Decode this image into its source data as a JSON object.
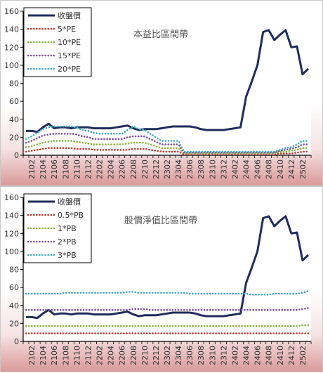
{
  "chart_data": [
    {
      "type": "line",
      "title": "本益比區間帶",
      "ylim": [
        0,
        160
      ],
      "yticks": [
        0,
        20,
        40,
        60,
        80,
        100,
        120,
        140,
        160
      ],
      "x_tick_labels": [
        "2102",
        "2104",
        "2106",
        "2108",
        "2110",
        "2112",
        "2202",
        "2204",
        "2206",
        "2208",
        "2210",
        "2212",
        "2302",
        "2304",
        "2306",
        "2308",
        "2310",
        "2312",
        "2402",
        "2404",
        "2406",
        "2408",
        "2410",
        "2412",
        "2502"
      ],
      "x": [
        "2101",
        "2102",
        "2103",
        "2104",
        "2105",
        "2106",
        "2107",
        "2108",
        "2109",
        "2110",
        "2111",
        "2112",
        "2201",
        "2202",
        "2203",
        "2204",
        "2205",
        "2206",
        "2207",
        "2208",
        "2209",
        "2210",
        "2211",
        "2212",
        "2301",
        "2302",
        "2303",
        "2304",
        "2305",
        "2306",
        "2307",
        "2308",
        "2309",
        "2310",
        "2311",
        "2312",
        "2401",
        "2402",
        "2403",
        "2404",
        "2405",
        "2406",
        "2407",
        "2408",
        "2409",
        "2410",
        "2411",
        "2412",
        "2501",
        "2502",
        "2503"
      ],
      "legend_position": "top-left",
      "series": [
        {
          "name": "收盤價",
          "color": "#1f2d5a",
          "style": "solid",
          "values": [
            27,
            27,
            26,
            31,
            35,
            30,
            31,
            31,
            30,
            31,
            31,
            31,
            30,
            30,
            30,
            30,
            31,
            32,
            33,
            30,
            28,
            29,
            29,
            29,
            30,
            31,
            32,
            32,
            32,
            32,
            31,
            29,
            28,
            28,
            28,
            28,
            29,
            30,
            31,
            65,
            82,
            100,
            137,
            139,
            128,
            134,
            139,
            120,
            121,
            90,
            96
          ]
        },
        {
          "name": "5*PE",
          "color": "#c0392b",
          "style": "dotted",
          "values": [
            4,
            5,
            6,
            7,
            8,
            8,
            8,
            8,
            8,
            7,
            7,
            7,
            6,
            6,
            6,
            6,
            6,
            6,
            6,
            7,
            7,
            7,
            6,
            5,
            4,
            4,
            4,
            4,
            1,
            1,
            1,
            1,
            1,
            1,
            1,
            1,
            1,
            1,
            1,
            1,
            1,
            1,
            1,
            1,
            1,
            2,
            2,
            2,
            3,
            4,
            4
          ]
        },
        {
          "name": "10*PE",
          "color": "#8cb43c",
          "style": "dotted",
          "values": [
            9,
            10,
            12,
            14,
            15,
            16,
            16,
            16,
            16,
            15,
            14,
            13,
            12,
            12,
            12,
            12,
            12,
            12,
            13,
            14,
            14,
            14,
            12,
            10,
            8,
            8,
            8,
            8,
            2,
            2,
            2,
            2,
            2,
            2,
            2,
            2,
            2,
            2,
            2,
            2,
            2,
            2,
            2,
            2,
            2,
            4,
            4,
            5,
            6,
            8,
            8
          ]
        },
        {
          "name": "15*PE",
          "color": "#7a52a0",
          "style": "dotted",
          "values": [
            14,
            16,
            19,
            22,
            23,
            24,
            24,
            24,
            24,
            23,
            21,
            20,
            18,
            18,
            18,
            18,
            18,
            18,
            20,
            21,
            21,
            21,
            18,
            15,
            12,
            12,
            12,
            12,
            3,
            3,
            3,
            3,
            3,
            3,
            3,
            3,
            3,
            3,
            3,
            3,
            3,
            3,
            3,
            3,
            3,
            5,
            6,
            7,
            9,
            12,
            12
          ]
        },
        {
          "name": "20*PE",
          "color": "#43a9c8",
          "style": "dotted",
          "values": [
            18,
            21,
            25,
            29,
            31,
            32,
            32,
            32,
            32,
            31,
            28,
            27,
            25,
            24,
            24,
            24,
            24,
            24,
            28,
            32,
            29,
            28,
            24,
            20,
            16,
            16,
            16,
            16,
            4,
            4,
            4,
            4,
            4,
            4,
            4,
            4,
            4,
            4,
            4,
            4,
            4,
            4,
            4,
            4,
            4,
            6,
            8,
            9,
            12,
            16,
            16
          ]
        }
      ]
    },
    {
      "type": "line",
      "title": "股價淨值比區間帶",
      "ylim": [
        0,
        160
      ],
      "yticks": [
        0,
        20,
        40,
        60,
        80,
        100,
        120,
        140,
        160
      ],
      "x_tick_labels": [
        "2102",
        "2104",
        "2106",
        "2108",
        "2110",
        "2112",
        "2202",
        "2204",
        "2206",
        "2208",
        "2210",
        "2212",
        "2302",
        "2304",
        "2306",
        "2308",
        "2310",
        "2312",
        "2402",
        "2404",
        "2406",
        "2408",
        "2410",
        "2412",
        "2502"
      ],
      "x": [
        "2101",
        "2102",
        "2103",
        "2104",
        "2105",
        "2106",
        "2107",
        "2108",
        "2109",
        "2110",
        "2111",
        "2112",
        "2201",
        "2202",
        "2203",
        "2204",
        "2205",
        "2206",
        "2207",
        "2208",
        "2209",
        "2210",
        "2211",
        "2212",
        "2301",
        "2302",
        "2303",
        "2304",
        "2305",
        "2306",
        "2307",
        "2308",
        "2309",
        "2310",
        "2311",
        "2312",
        "2401",
        "2402",
        "2403",
        "2404",
        "2405",
        "2406",
        "2407",
        "2408",
        "2409",
        "2410",
        "2411",
        "2412",
        "2501",
        "2502",
        "2503"
      ],
      "legend_position": "top-left",
      "series": [
        {
          "name": "收盤價",
          "color": "#1f2d5a",
          "style": "solid",
          "values": [
            27,
            27,
            26,
            31,
            35,
            30,
            31,
            31,
            30,
            31,
            31,
            31,
            30,
            30,
            30,
            30,
            31,
            32,
            33,
            30,
            28,
            29,
            29,
            29,
            30,
            31,
            32,
            32,
            32,
            32,
            31,
            29,
            28,
            28,
            28,
            28,
            29,
            30,
            31,
            65,
            82,
            100,
            137,
            139,
            128,
            134,
            139,
            120,
            121,
            90,
            96
          ]
        },
        {
          "name": "0.5*PB",
          "color": "#c0392b",
          "style": "dotted",
          "values": [
            9,
            9,
            9,
            9,
            9,
            9,
            9,
            9,
            9,
            9,
            9,
            9,
            9,
            9,
            9,
            9,
            9,
            9,
            9,
            9,
            9,
            9,
            9,
            9,
            9,
            9,
            9,
            9,
            9,
            9,
            9,
            9,
            9,
            9,
            9,
            9,
            9,
            9,
            9,
            9,
            9,
            9,
            9,
            9,
            9,
            9,
            9,
            9,
            9,
            9,
            9
          ]
        },
        {
          "name": "1*PB",
          "color": "#8cb43c",
          "style": "dotted",
          "values": [
            17,
            17,
            17,
            17,
            17,
            17,
            17,
            17,
            17,
            17,
            17,
            17,
            17,
            17,
            17,
            17,
            17,
            17,
            17,
            17,
            17,
            17,
            17,
            17,
            17,
            17,
            17,
            17,
            17,
            17,
            17,
            17,
            17,
            17,
            17,
            17,
            17,
            17,
            17,
            17,
            17,
            17,
            17,
            17,
            17,
            17,
            17,
            17,
            17,
            18,
            18
          ]
        },
        {
          "name": "2*PB",
          "color": "#7a52a0",
          "style": "dotted",
          "values": [
            35,
            35,
            35,
            35,
            35,
            35,
            35,
            35,
            35,
            35,
            35,
            35,
            35,
            35,
            35,
            35,
            35,
            35,
            35,
            36,
            36,
            36,
            35,
            35,
            35,
            35,
            35,
            35,
            35,
            35,
            35,
            35,
            35,
            35,
            35,
            35,
            35,
            35,
            35,
            35,
            35,
            35,
            35,
            35,
            35,
            35,
            35,
            35,
            35,
            36,
            37
          ]
        },
        {
          "name": "3*PB",
          "color": "#43a9c8",
          "style": "dotted",
          "values": [
            53,
            53,
            53,
            53,
            53,
            53,
            53,
            54,
            54,
            54,
            54,
            54,
            54,
            54,
            54,
            54,
            54,
            54,
            55,
            55,
            54,
            54,
            54,
            54,
            54,
            54,
            54,
            54,
            54,
            53,
            53,
            53,
            53,
            53,
            53,
            53,
            53,
            53,
            53,
            53,
            52,
            52,
            52,
            52,
            53,
            53,
            53,
            53,
            53,
            54,
            56
          ]
        }
      ]
    }
  ]
}
